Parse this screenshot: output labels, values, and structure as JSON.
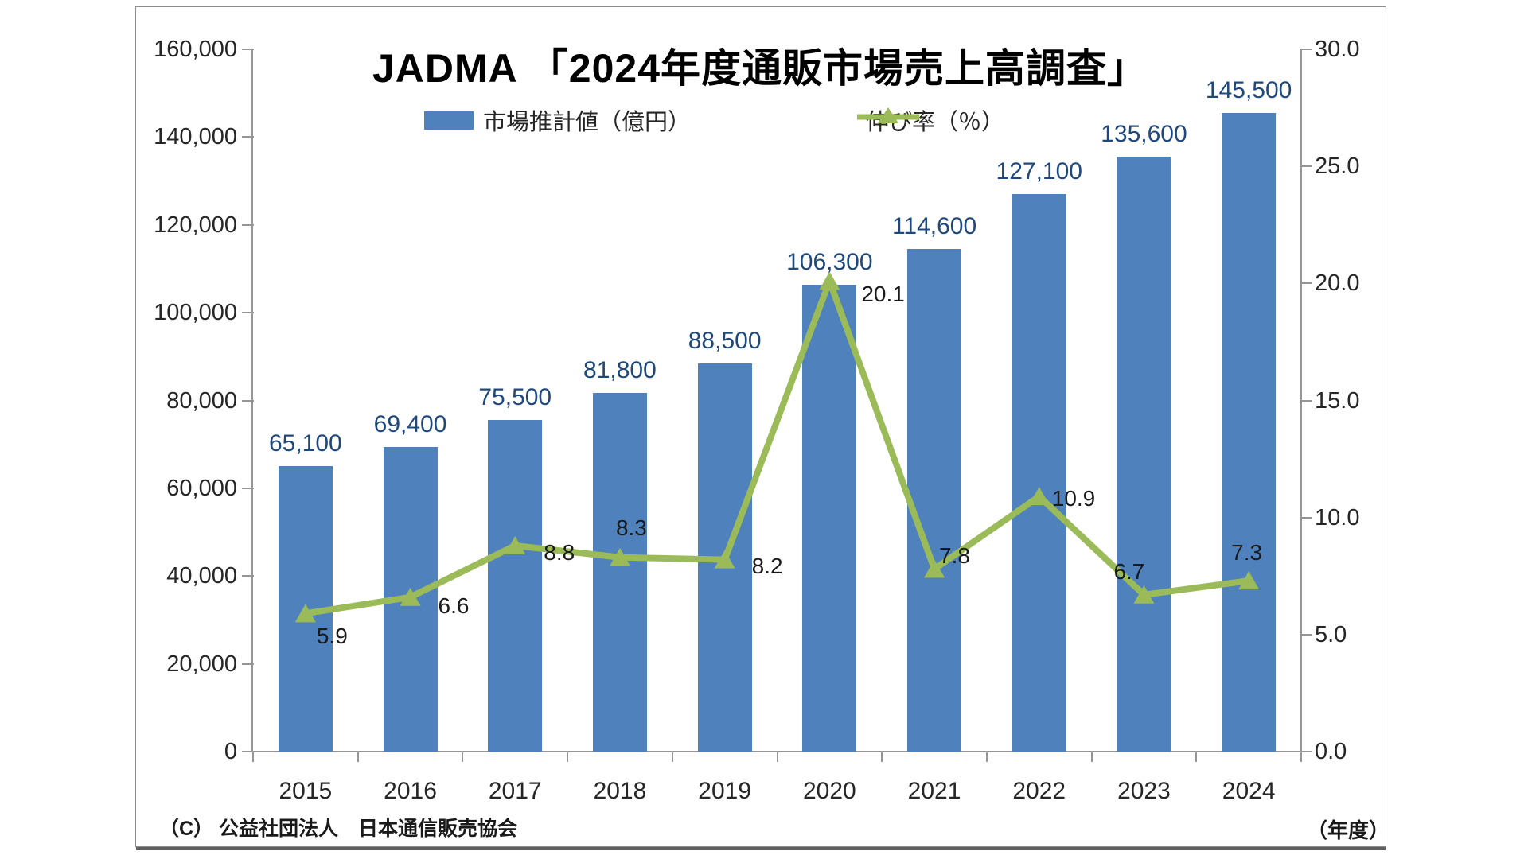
{
  "title": "JADMA 「2024年度通販市場売上高調査」",
  "footer": {
    "copyright": "（C） 公益社団法人　日本通信販売協会",
    "year_unit": "（年度）"
  },
  "colors": {
    "bar": "#4f81bd",
    "line": "#9bbb59",
    "bar_label": "#1f497d",
    "axis": "#969696",
    "text": "#262626"
  },
  "chart_data": {
    "type": "combo-bar-line",
    "categories": [
      "2015",
      "2016",
      "2017",
      "2018",
      "2019",
      "2020",
      "2021",
      "2022",
      "2023",
      "2024"
    ],
    "series": [
      {
        "name": "市場推計値（億円）",
        "type": "bar",
        "axis": "left",
        "values": [
          65100,
          69400,
          75500,
          81800,
          88500,
          106300,
          114600,
          127100,
          135600,
          145500
        ],
        "labels": [
          "65,100",
          "69,400",
          "75,500",
          "81,800",
          "88,500",
          "106,300",
          "114,600",
          "127,100",
          "135,600",
          "145,500"
        ]
      },
      {
        "name": "伸び率（％）",
        "type": "line",
        "axis": "right",
        "values": [
          5.9,
          6.6,
          8.8,
          8.3,
          8.2,
          20.1,
          7.8,
          10.9,
          6.7,
          7.3
        ],
        "labels": [
          "5.9",
          "6.6",
          "8.8",
          "8.3",
          "8.2",
          "20.1",
          "7.8",
          "10.9",
          "6.7",
          "7.3"
        ]
      }
    ],
    "left_axis": {
      "min": 0,
      "max": 160000,
      "step": 20000,
      "tick_labels": [
        "0",
        "20,000",
        "40,000",
        "60,000",
        "80,000",
        "100,000",
        "120,000",
        "140,000",
        "160,000"
      ]
    },
    "right_axis": {
      "min": 0,
      "max": 30,
      "step": 5,
      "tick_labels": [
        "0.0",
        "5.0",
        "10.0",
        "15.0",
        "20.0",
        "25.0",
        "30.0"
      ]
    },
    "x_axis_unit": "（年度）",
    "gridlines": false,
    "legend_position": "top"
  }
}
